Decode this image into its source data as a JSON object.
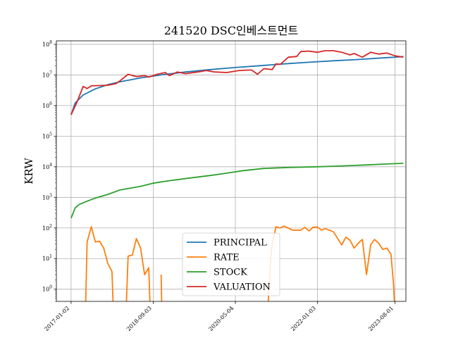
{
  "chart_data": {
    "type": "line",
    "title": "241520 DSC인베스트먼트",
    "xlabel": "",
    "ylabel": "KRW",
    "y_scale": "log",
    "ylim": [
      0.4,
      130000000
    ],
    "xlim": [
      "2016-09-15",
      "2023-10-20"
    ],
    "grid": true,
    "legend_position": "bottom-center",
    "x_tick_labels": [
      "2017-01-02",
      "2018-09-03",
      "2020-05-04",
      "2022-01-03",
      "2023-08-01"
    ],
    "y_tick_labels": [
      "10^0",
      "10^1",
      "10^2",
      "10^3",
      "10^4",
      "10^5",
      "10^6",
      "10^7",
      "10^8"
    ],
    "series": [
      {
        "name": "PRINCIPAL",
        "color": "#1f77b4",
        "points": [
          [
            "2017-01-02",
            500000
          ],
          [
            "2017-02-01",
            1200000
          ],
          [
            "2017-04-01",
            2200000
          ],
          [
            "2017-07-01",
            3500000
          ],
          [
            "2017-10-01",
            4800000
          ],
          [
            "2018-01-01",
            6000000
          ],
          [
            "2018-06-01",
            8000000
          ],
          [
            "2018-11-01",
            10000000
          ],
          [
            "2019-05-01",
            12500000
          ],
          [
            "2019-11-01",
            15000000
          ],
          [
            "2020-05-01",
            17500000
          ],
          [
            "2020-11-01",
            20000000
          ],
          [
            "2021-05-01",
            23000000
          ],
          [
            "2021-11-01",
            26000000
          ],
          [
            "2022-05-01",
            29000000
          ],
          [
            "2022-11-01",
            32000000
          ],
          [
            "2023-05-01",
            36000000
          ],
          [
            "2023-08-01",
            38000000
          ],
          [
            "2023-10-01",
            40000000
          ]
        ]
      },
      {
        "name": "RATE",
        "color": "#ff7f0e",
        "segments": [
          [
            [
              "2017-04-20",
              0.3
            ],
            [
              "2017-05-01",
              35
            ],
            [
              "2017-06-01",
              110
            ],
            [
              "2017-07-01",
              35
            ],
            [
              "2017-08-01",
              37
            ],
            [
              "2017-09-01",
              22
            ],
            [
              "2017-10-01",
              7
            ],
            [
              "2017-11-01",
              3.8
            ],
            [
              "2017-11-10",
              0.3
            ]
          ],
          [
            [
              "2018-02-15",
              0.3
            ],
            [
              "2018-03-01",
              12
            ],
            [
              "2018-04-01",
              13
            ],
            [
              "2018-05-01",
              45
            ],
            [
              "2018-06-01",
              22
            ],
            [
              "2018-07-01",
              3
            ],
            [
              "2018-08-01",
              5
            ],
            [
              "2018-08-10",
              0.3
            ]
          ],
          [
            [
              "2018-11-01",
              3
            ],
            [
              "2018-11-05",
              0.3
            ]
          ],
          [
            [
              "2021-01-01",
              0.3
            ],
            [
              "2021-01-20",
              10
            ],
            [
              "2021-02-01",
              30
            ],
            [
              "2021-03-01",
              110
            ],
            [
              "2021-04-01",
              100
            ],
            [
              "2021-05-01",
              115
            ],
            [
              "2021-07-01",
              85
            ],
            [
              "2021-09-01",
              85
            ],
            [
              "2021-10-01",
              105
            ],
            [
              "2021-11-01",
              80
            ],
            [
              "2021-12-01",
              105
            ],
            [
              "2022-01-01",
              108
            ],
            [
              "2022-02-01",
              85
            ],
            [
              "2022-03-01",
              95
            ],
            [
              "2022-05-01",
              75
            ],
            [
              "2022-07-01",
              28
            ],
            [
              "2022-08-01",
              50
            ],
            [
              "2022-09-01",
              40
            ],
            [
              "2022-10-01",
              22
            ],
            [
              "2022-11-01",
              32
            ],
            [
              "2022-12-01",
              42
            ],
            [
              "2023-01-01",
              3
            ],
            [
              "2023-02-01",
              28
            ],
            [
              "2023-03-01",
              42
            ],
            [
              "2023-04-01",
              32
            ],
            [
              "2023-05-01",
              20
            ],
            [
              "2023-06-01",
              22
            ],
            [
              "2023-07-01",
              14
            ],
            [
              "2023-07-20",
              1.5
            ],
            [
              "2023-07-28",
              0.3
            ]
          ]
        ]
      },
      {
        "name": "STOCK",
        "color": "#2ca02c",
        "points": [
          [
            "2017-01-02",
            210
          ],
          [
            "2017-02-01",
            450
          ],
          [
            "2017-03-01",
            580
          ],
          [
            "2017-05-01",
            750
          ],
          [
            "2017-07-01",
            950
          ],
          [
            "2017-10-01",
            1250
          ],
          [
            "2018-01-01",
            1750
          ],
          [
            "2018-06-01",
            2300
          ],
          [
            "2018-09-01",
            2900
          ],
          [
            "2019-01-01",
            3500
          ],
          [
            "2019-06-01",
            4300
          ],
          [
            "2019-11-01",
            5200
          ],
          [
            "2020-03-01",
            6200
          ],
          [
            "2020-07-01",
            7500
          ],
          [
            "2020-12-01",
            8800
          ],
          [
            "2021-06-01",
            9500
          ],
          [
            "2022-01-01",
            10000
          ],
          [
            "2022-06-01",
            10500
          ],
          [
            "2023-01-01",
            11500
          ],
          [
            "2023-06-01",
            12300
          ],
          [
            "2023-10-01",
            13000
          ]
        ]
      },
      {
        "name": "VALUATION",
        "color": "#d62728",
        "points": [
          [
            "2017-01-02",
            500000
          ],
          [
            "2017-02-15",
            1300000
          ],
          [
            "2017-04-01",
            4200000
          ],
          [
            "2017-05-01",
            3600000
          ],
          [
            "2017-06-01",
            4400000
          ],
          [
            "2017-08-01",
            4500000
          ],
          [
            "2017-10-01",
            4600000
          ],
          [
            "2017-12-01",
            5200000
          ],
          [
            "2018-01-01",
            6500000
          ],
          [
            "2018-03-01",
            10500000
          ],
          [
            "2018-05-01",
            8800000
          ],
          [
            "2018-07-01",
            9500000
          ],
          [
            "2018-08-01",
            8500000
          ],
          [
            "2018-10-01",
            10500000
          ],
          [
            "2018-12-01",
            12000000
          ],
          [
            "2019-01-01",
            9500000
          ],
          [
            "2019-03-01",
            12500000
          ],
          [
            "2019-05-01",
            11000000
          ],
          [
            "2019-08-01",
            12500000
          ],
          [
            "2019-10-01",
            14000000
          ],
          [
            "2019-12-01",
            12500000
          ],
          [
            "2020-03-01",
            12000000
          ],
          [
            "2020-06-01",
            14000000
          ],
          [
            "2020-09-01",
            14500000
          ],
          [
            "2020-10-15",
            10500000
          ],
          [
            "2020-12-01",
            16000000
          ],
          [
            "2021-02-01",
            15000000
          ],
          [
            "2021-03-01",
            23000000
          ],
          [
            "2021-04-01",
            22000000
          ],
          [
            "2021-06-01",
            38000000
          ],
          [
            "2021-08-01",
            40000000
          ],
          [
            "2021-09-01",
            58000000
          ],
          [
            "2021-11-01",
            60000000
          ],
          [
            "2022-01-01",
            55000000
          ],
          [
            "2022-03-01",
            62000000
          ],
          [
            "2022-05-01",
            62000000
          ],
          [
            "2022-07-01",
            55000000
          ],
          [
            "2022-09-01",
            45000000
          ],
          [
            "2022-10-01",
            50000000
          ],
          [
            "2022-12-01",
            38000000
          ],
          [
            "2023-02-01",
            55000000
          ],
          [
            "2023-04-01",
            48000000
          ],
          [
            "2023-06-01",
            52000000
          ],
          [
            "2023-08-01",
            42000000
          ],
          [
            "2023-10-01",
            38000000
          ]
        ]
      }
    ]
  }
}
